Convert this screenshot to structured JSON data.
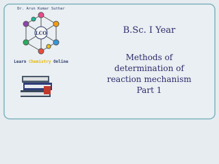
{
  "header": {
    "author": "Dr. Arun Kumar Suthar",
    "logo_text": "LCO",
    "brand": [
      "Learn ",
      "Chemistry",
      " Online"
    ]
  },
  "main": {
    "course": "B.Sc. I Year",
    "title_lines": [
      "Methods of",
      "determination of",
      "reaction mechanism",
      "Part 1"
    ]
  }
}
